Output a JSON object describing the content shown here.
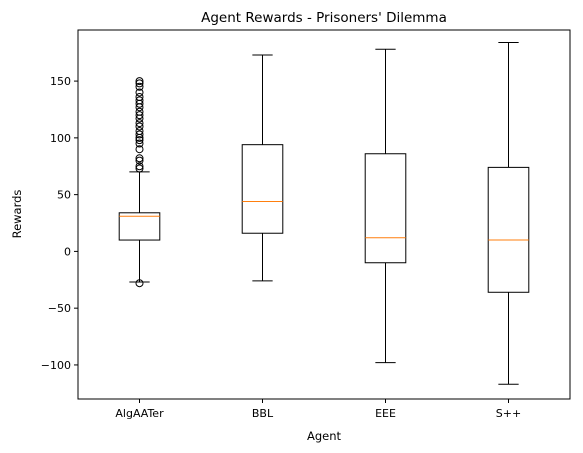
{
  "chart_data": {
    "type": "box",
    "title": "Agent Rewards - Prisoners' Dilemma",
    "xlabel": "Agent",
    "ylabel": "Rewards",
    "ylim": [
      -130,
      195
    ],
    "yticks": [
      -100,
      -50,
      0,
      50,
      100,
      150
    ],
    "ytick_labels": [
      "−100",
      "−50",
      "0",
      "50",
      "100",
      "150"
    ],
    "grid": false,
    "categories": [
      "AlgAATer",
      "BBL",
      "EEE",
      "S++"
    ],
    "boxes": [
      {
        "name": "AlgAATer",
        "whisker_low": -27,
        "q1": 10,
        "median": 31,
        "q3": 34,
        "whisker_high": 70,
        "outliers": [
          -28,
          73,
          75,
          80,
          82,
          90,
          95,
          98,
          100,
          103,
          106,
          110,
          113,
          117,
          120,
          123,
          127,
          130,
          133,
          136,
          140,
          145,
          148,
          150
        ]
      },
      {
        "name": "BBL",
        "whisker_low": -26,
        "q1": 16,
        "median": 44,
        "q3": 94,
        "whisker_high": 173,
        "outliers": []
      },
      {
        "name": "EEE",
        "whisker_low": -98,
        "q1": -10,
        "median": 12,
        "q3": 86,
        "whisker_high": 178,
        "outliers": []
      },
      {
        "name": "S++",
        "whisker_low": -117,
        "q1": -36,
        "median": 10,
        "q3": 74,
        "whisker_high": 184,
        "outliers": []
      }
    ],
    "colors": {
      "box": "#000000",
      "median": "#ff7f0e",
      "outlier": "#000000"
    }
  }
}
